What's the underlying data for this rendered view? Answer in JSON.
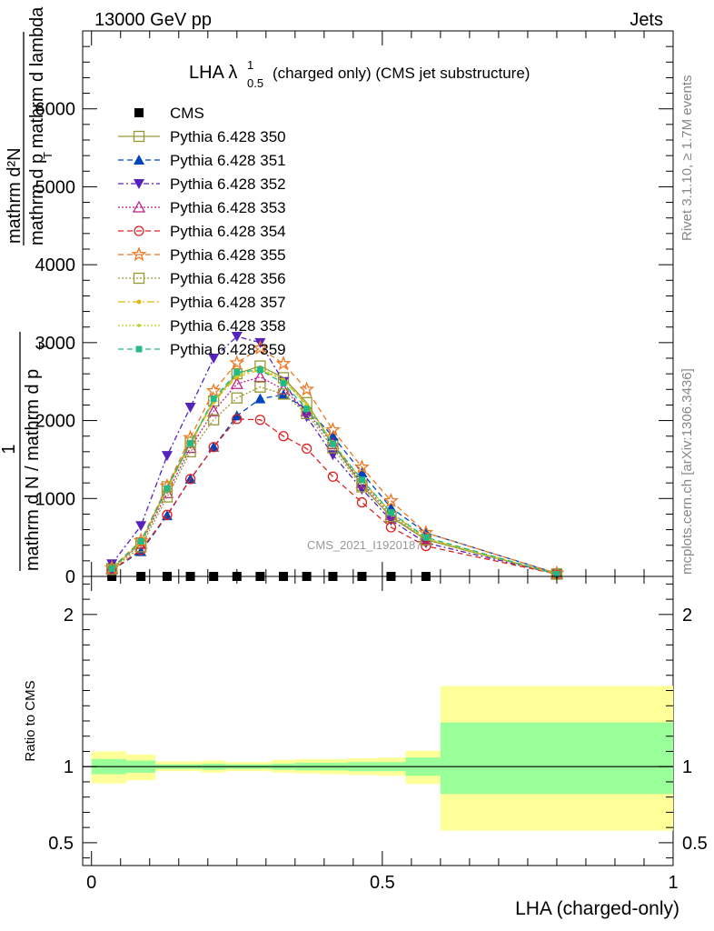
{
  "header": {
    "left": "13000 GeV pp",
    "right": "Jets"
  },
  "title": {
    "main": "LHA λ",
    "sup": "1",
    "sub": "0.5",
    "rest": "(charged only) (CMS jet substructure)"
  },
  "ylabel": {
    "top_num": "mathrm d²N",
    "top_den": "mathrm d p  mathrm d lambda",
    "top_den_sub": "T",
    "one": "1",
    "bottom": "mathrm d N / mathrm d p",
    "bottom_sub": "T"
  },
  "side": {
    "rivet": "Rivet 3.1.10, ≥ 1.7M events",
    "mcplots": "mcplots.cern.ch [arXiv:1306.3436]"
  },
  "watermark": "CMS_2021_I1920187",
  "ratio_ylabel": "Ratio to CMS",
  "xlabel": "LHA (charged-only)",
  "colors": {
    "band_outer": "#ffff99",
    "band_inner": "#99ff99"
  },
  "chart_data": [
    {
      "type": "line",
      "panel": "main",
      "xlim": [
        -0.0152,
        1.0
      ],
      "ylim": [
        0,
        7000
      ],
      "yticks": [
        0,
        1000,
        2000,
        3000,
        4000,
        5000,
        6000
      ],
      "ytick_labels": [
        "0",
        "1000",
        "2000",
        "3000",
        "4000",
        "5000",
        "6000"
      ],
      "legend_position": "top-left",
      "series": [
        {
          "name": "CMS",
          "color": "#000000",
          "marker": "square-filled",
          "dash": "",
          "x": [
            0.035,
            0.085,
            0.13,
            0.17,
            0.21,
            0.25,
            0.29,
            0.33,
            0.37,
            0.415,
            0.465,
            0.515,
            0.575
          ],
          "y": [
            0,
            0,
            0,
            0,
            0,
            0,
            0,
            0,
            0,
            0,
            0,
            0,
            0
          ]
        },
        {
          "name": "Pythia 6.428 350",
          "color": "#999933",
          "marker": "square-open",
          "dash": "",
          "x": [
            0.035,
            0.085,
            0.13,
            0.17,
            0.21,
            0.25,
            0.29,
            0.33,
            0.37,
            0.415,
            0.465,
            0.515,
            0.575,
            0.8
          ],
          "y": [
            100,
            430,
            1150,
            1720,
            2250,
            2600,
            2700,
            2550,
            2230,
            1700,
            1170,
            760,
            470,
            30
          ]
        },
        {
          "name": "Pythia 6.428 351",
          "color": "#0044bb",
          "marker": "triangle-up-filled",
          "dash": "6,4",
          "x": [
            0.035,
            0.085,
            0.13,
            0.17,
            0.21,
            0.25,
            0.29,
            0.33,
            0.37,
            0.415,
            0.465,
            0.515,
            0.575,
            0.8
          ],
          "y": [
            80,
            320,
            780,
            1250,
            1660,
            2060,
            2280,
            2330,
            2150,
            1800,
            1330,
            880,
            560,
            40
          ]
        },
        {
          "name": "Pythia 6.428 352",
          "color": "#5522bb",
          "marker": "triangle-down-filled",
          "dash": "6,3,2,3",
          "x": [
            0.035,
            0.085,
            0.13,
            0.17,
            0.21,
            0.25,
            0.29,
            0.33,
            0.37,
            0.415,
            0.465,
            0.515,
            0.575,
            0.8
          ],
          "y": [
            160,
            650,
            1550,
            2170,
            2800,
            3080,
            3000,
            2500,
            2050,
            1560,
            1120,
            720,
            430,
            30
          ]
        },
        {
          "name": "Pythia 6.428 353",
          "color": "#bb2288",
          "marker": "triangle-up-open",
          "dash": "2,2",
          "x": [
            0.035,
            0.085,
            0.13,
            0.17,
            0.21,
            0.25,
            0.29,
            0.33,
            0.37,
            0.415,
            0.465,
            0.515,
            0.575,
            0.8
          ],
          "y": [
            100,
            420,
            1070,
            1650,
            2120,
            2470,
            2560,
            2400,
            2120,
            1700,
            1200,
            790,
            480,
            30
          ]
        },
        {
          "name": "Pythia 6.428 354",
          "color": "#dd2222",
          "marker": "circle-open",
          "dash": "6,4",
          "x": [
            0.035,
            0.085,
            0.13,
            0.17,
            0.21,
            0.25,
            0.29,
            0.33,
            0.37,
            0.415,
            0.465,
            0.515,
            0.575,
            0.8
          ],
          "y": [
            80,
            340,
            790,
            1250,
            1660,
            2020,
            2010,
            1800,
            1640,
            1280,
            950,
            630,
            390,
            30
          ]
        },
        {
          "name": "Pythia 6.428 355",
          "color": "#ee7722",
          "marker": "star-open",
          "dash": "6,4",
          "x": [
            0.035,
            0.085,
            0.13,
            0.17,
            0.21,
            0.25,
            0.29,
            0.33,
            0.37,
            0.415,
            0.465,
            0.515,
            0.575,
            0.8
          ],
          "y": [
            110,
            460,
            1160,
            1780,
            2380,
            2740,
            2930,
            2730,
            2400,
            1880,
            1400,
            970,
            560,
            40
          ]
        },
        {
          "name": "Pythia 6.428 356",
          "color": "#999933",
          "marker": "square-open",
          "dash": "2,2",
          "x": [
            0.035,
            0.085,
            0.13,
            0.17,
            0.21,
            0.25,
            0.29,
            0.33,
            0.37,
            0.415,
            0.465,
            0.515,
            0.575,
            0.8
          ],
          "y": [
            90,
            380,
            1020,
            1600,
            2010,
            2290,
            2430,
            2340,
            2090,
            1650,
            1150,
            770,
            470,
            30
          ]
        },
        {
          "name": "Pythia 6.428 357",
          "color": "#ddbb11",
          "marker": "dot",
          "dash": "8,3,2,3",
          "x": [
            0.035,
            0.085,
            0.13,
            0.17,
            0.21,
            0.25,
            0.29,
            0.33,
            0.37,
            0.415,
            0.465,
            0.515,
            0.575,
            0.8
          ],
          "y": [
            100,
            430,
            1120,
            1700,
            2240,
            2560,
            2650,
            2520,
            2200,
            1720,
            1230,
            820,
            490,
            30
          ]
        },
        {
          "name": "Pythia 6.428 358",
          "color": "#bbcc22",
          "marker": "dot-small",
          "dash": "2,2",
          "x": [
            0.035,
            0.085,
            0.13,
            0.17,
            0.21,
            0.25,
            0.29,
            0.33,
            0.37,
            0.415,
            0.465,
            0.515,
            0.575,
            0.8
          ],
          "y": [
            100,
            440,
            1130,
            1700,
            2260,
            2580,
            2670,
            2530,
            2200,
            1710,
            1220,
            800,
            480,
            30
          ]
        },
        {
          "name": "Pythia 6.428 359",
          "color": "#22bb88",
          "marker": "square-filled-small",
          "dash": "6,4",
          "x": [
            0.035,
            0.085,
            0.13,
            0.17,
            0.21,
            0.25,
            0.29,
            0.33,
            0.37,
            0.415,
            0.465,
            0.515,
            0.575,
            0.8
          ],
          "y": [
            100,
            450,
            1130,
            1710,
            2280,
            2620,
            2650,
            2480,
            2150,
            1700,
            1240,
            820,
            500,
            30
          ]
        }
      ]
    },
    {
      "type": "area",
      "panel": "ratio",
      "xlim": [
        -0.0152,
        1.0
      ],
      "ylim": [
        0.35,
        2.25
      ],
      "yticks": [
        0.5,
        1,
        2
      ],
      "ytick_labels": [
        "0.5",
        "1",
        "2"
      ],
      "xticks": [
        0,
        0.5,
        1
      ],
      "xtick_labels": [
        "0",
        "0.5",
        "1"
      ],
      "reference_line": 1,
      "bands": [
        {
          "x0": 0.0,
          "x1": 0.06,
          "outer": [
            0.89,
            1.1
          ],
          "inner": [
            0.95,
            1.05
          ]
        },
        {
          "x0": 0.06,
          "x1": 0.11,
          "outer": [
            0.91,
            1.08
          ],
          "inner": [
            0.96,
            1.04
          ]
        },
        {
          "x0": 0.11,
          "x1": 0.19,
          "outer": [
            0.97,
            1.035
          ],
          "inner": [
            0.985,
            1.015
          ]
        },
        {
          "x0": 0.19,
          "x1": 0.23,
          "outer": [
            0.96,
            1.04
          ],
          "inner": [
            0.98,
            1.02
          ]
        },
        {
          "x0": 0.23,
          "x1": 0.31,
          "outer": [
            0.97,
            1.03
          ],
          "inner": [
            0.985,
            1.015
          ]
        },
        {
          "x0": 0.31,
          "x1": 0.35,
          "outer": [
            0.96,
            1.045
          ],
          "inner": [
            0.98,
            1.02
          ]
        },
        {
          "x0": 0.35,
          "x1": 0.39,
          "outer": [
            0.955,
            1.05
          ],
          "inner": [
            0.975,
            1.025
          ]
        },
        {
          "x0": 0.39,
          "x1": 0.44,
          "outer": [
            0.95,
            1.05
          ],
          "inner": [
            0.975,
            1.025
          ]
        },
        {
          "x0": 0.44,
          "x1": 0.49,
          "outer": [
            0.945,
            1.055
          ],
          "inner": [
            0.97,
            1.03
          ]
        },
        {
          "x0": 0.49,
          "x1": 0.54,
          "outer": [
            0.94,
            1.06
          ],
          "inner": [
            0.97,
            1.03
          ]
        },
        {
          "x0": 0.54,
          "x1": 0.6,
          "outer": [
            0.885,
            1.105
          ],
          "inner": [
            0.94,
            1.06
          ]
        },
        {
          "x0": 0.6,
          "x1": 1.0,
          "outer": [
            0.58,
            1.53
          ],
          "inner": [
            0.82,
            1.29
          ]
        }
      ]
    }
  ]
}
